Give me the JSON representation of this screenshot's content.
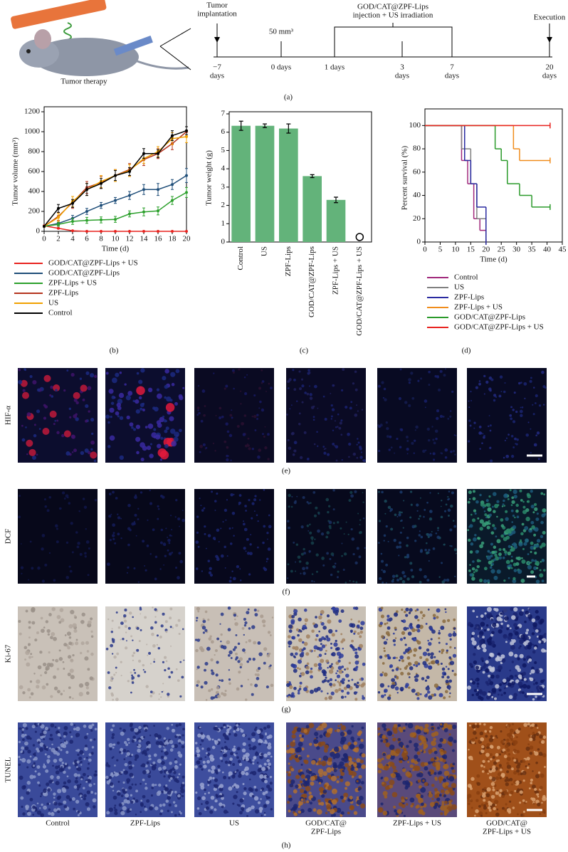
{
  "panel_a": {
    "caption": "Tumor therapy",
    "label": "(a)",
    "events": {
      "implantation": [
        "Tumor",
        "implantation"
      ],
      "volume": "50 mm³",
      "treatment": [
        "GOD/CAT@ZPF-Lips",
        "injection + US irradiation"
      ],
      "execution": "Execution"
    },
    "points": [
      {
        "lines": [
          "−7",
          "days"
        ]
      },
      {
        "lines": [
          "0 days"
        ]
      },
      {
        "lines": [
          "1 days"
        ]
      },
      {
        "lines": [
          "3",
          "days"
        ]
      },
      {
        "lines": [
          "7",
          "days"
        ]
      },
      {
        "lines": [
          "20",
          "days"
        ]
      }
    ]
  },
  "chart_data": [
    {
      "type": "line",
      "label": "(b)",
      "xlabel": "Time (d)",
      "ylabel": "Tumor volume (mm³)",
      "x": [
        0,
        2,
        4,
        6,
        8,
        10,
        12,
        14,
        16,
        18,
        20
      ],
      "xlim": [
        0,
        20
      ],
      "xticks": [
        0,
        2,
        4,
        6,
        8,
        10,
        12,
        14,
        16,
        18,
        20
      ],
      "ylim": [
        0,
        1200
      ],
      "yticks": [
        0,
        200,
        400,
        600,
        800,
        1000,
        1200
      ],
      "series": [
        {
          "name": "GOD/CAT@ZPF-Lips + US",
          "color": "#e8231f",
          "values": [
            55,
            30,
            5,
            0,
            0,
            0,
            0,
            0,
            0,
            0,
            0
          ],
          "errors": [
            5,
            5,
            3,
            0,
            0,
            0,
            0,
            0,
            0,
            0,
            0
          ]
        },
        {
          "name": "GOD/CAT@ZPF-Lips",
          "color": "#1f4e79",
          "values": [
            50,
            80,
            130,
            200,
            260,
            310,
            360,
            420,
            420,
            470,
            560
          ],
          "errors": [
            5,
            20,
            30,
            30,
            30,
            30,
            40,
            50,
            60,
            50,
            70
          ]
        },
        {
          "name": "ZPF-Lips + US",
          "color": "#2ca02c",
          "values": [
            50,
            70,
            100,
            110,
            115,
            120,
            175,
            195,
            205,
            310,
            390
          ],
          "errors": [
            5,
            20,
            30,
            30,
            30,
            30,
            30,
            40,
            40,
            40,
            50
          ]
        },
        {
          "name": "ZPF-Lips",
          "color": "#b5341e",
          "values": [
            50,
            150,
            290,
            440,
            490,
            560,
            620,
            720,
            780,
            880,
            1000
          ],
          "errors": [
            5,
            40,
            60,
            60,
            60,
            60,
            60,
            60,
            50,
            60,
            50
          ]
        },
        {
          "name": "US",
          "color": "#f0a000",
          "values": [
            50,
            140,
            300,
            420,
            500,
            560,
            610,
            730,
            800,
            930,
            950
          ],
          "errors": [
            5,
            40,
            50,
            60,
            60,
            60,
            60,
            50,
            50,
            60,
            60
          ]
        },
        {
          "name": "Control",
          "color": "#000000",
          "values": [
            50,
            230,
            280,
            420,
            480,
            560,
            600,
            780,
            780,
            960,
            1010
          ],
          "errors": [
            5,
            40,
            40,
            60,
            50,
            50,
            40,
            50,
            40,
            50,
            40
          ]
        }
      ]
    },
    {
      "type": "bar",
      "label": "(c)",
      "ylabel": "Tumor weight (g)",
      "color": "#63b37a",
      "categories": [
        "Control",
        "US",
        "ZPF-Lips",
        "GOD/CAT@ZPF-Lips",
        "ZPF-Lips + US",
        "GOD/CAT@ZPF-Lips + US"
      ],
      "values": [
        6.35,
        6.35,
        6.2,
        3.6,
        2.3,
        0
      ],
      "errors": [
        0.25,
        0.1,
        0.25,
        0.08,
        0.15,
        0
      ],
      "ylim": [
        0,
        7
      ],
      "yticks": [
        0,
        1,
        2,
        3,
        4,
        5,
        6,
        7
      ]
    },
    {
      "type": "step",
      "label": "(d)",
      "xlabel": "Time (d)",
      "ylabel": "Percent survival (%)",
      "xlim": [
        0,
        45
      ],
      "xticks": [
        0,
        5,
        10,
        15,
        20,
        25,
        30,
        35,
        40,
        45
      ],
      "ylim": [
        0,
        110
      ],
      "yticks": [
        0,
        20,
        40,
        60,
        80,
        100
      ],
      "series": [
        {
          "name": "Control",
          "color": "#a0287a",
          "x": [
            0,
            12,
            14,
            16,
            18,
            20
          ],
          "values": [
            100,
            70,
            50,
            20,
            10,
            0
          ]
        },
        {
          "name": "US",
          "color": "#808080",
          "x": [
            0,
            12,
            15,
            17,
            20
          ],
          "values": [
            100,
            80,
            50,
            20,
            0
          ]
        },
        {
          "name": "ZPF-Lips",
          "color": "#2a2aa0",
          "x": [
            0,
            13,
            15,
            17,
            20
          ],
          "values": [
            100,
            70,
            50,
            30,
            0
          ]
        },
        {
          "name": "ZPF-Lips + US",
          "color": "#f08c1c",
          "x": [
            0,
            29,
            31,
            41
          ],
          "values": [
            100,
            80,
            70,
            70
          ]
        },
        {
          "name": "GOD/CAT@ZPF-Lips",
          "color": "#2a9a2a",
          "x": [
            0,
            23,
            25,
            27,
            31,
            35,
            41
          ],
          "values": [
            100,
            80,
            70,
            50,
            40,
            30,
            30
          ]
        },
        {
          "name": "GOD/CAT@ZPF-Lips + US",
          "color": "#e8231f",
          "x": [
            0,
            41
          ],
          "values": [
            100,
            100
          ]
        }
      ]
    }
  ],
  "image_panels": {
    "rows": [
      {
        "name": "HIF-α",
        "label": "(e)"
      },
      {
        "name": "DCF",
        "label": "(f)"
      },
      {
        "name": "Ki-67",
        "label": "(g)"
      },
      {
        "name": "TUNEL",
        "label": "(h)"
      }
    ],
    "columns": [
      [
        "Control"
      ],
      [
        "ZPF-Lips"
      ],
      [
        "US"
      ],
      [
        "GOD/CAT@",
        "ZPF-Lips"
      ],
      [
        "ZPF-Lips + US"
      ],
      [
        "GOD/CAT@",
        "ZPF-Lips + US"
      ]
    ]
  }
}
